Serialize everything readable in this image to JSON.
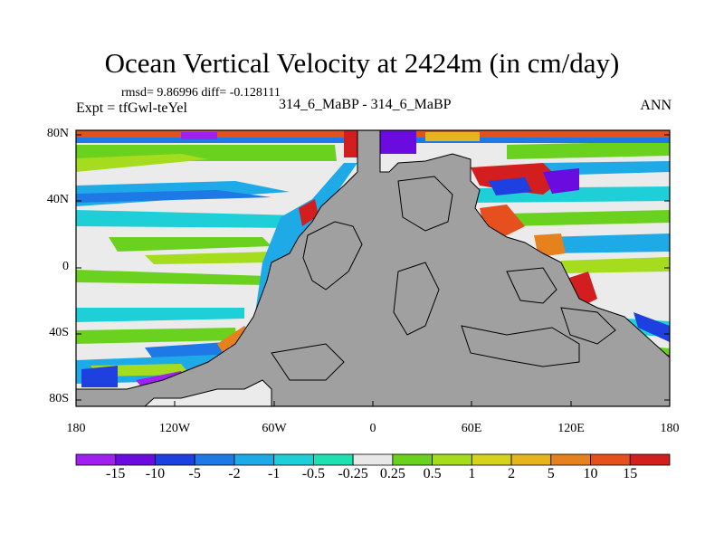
{
  "title": "Ocean Vertical Velocity at 2424m (in cm/day)",
  "stats": "rmsd= 9.86996 diff= -0.128111",
  "experiment": "Expt = tfGwl-teYel",
  "case": "314_6_MaBP - 314_6_MaBP",
  "season": "ANN",
  "y_axis": [
    "80N",
    "40N",
    "0",
    "40S",
    "80S"
  ],
  "x_axis": [
    "180",
    "120W",
    "60W",
    "0",
    "60E",
    "120E",
    "180"
  ],
  "colorbar": {
    "labels": [
      "-15",
      "-10",
      "-5",
      "-2",
      "-1",
      "-0.5",
      "-0.25",
      "0.25",
      "0.5",
      "1",
      "2",
      "5",
      "10",
      "15"
    ],
    "colors": [
      "#a020f0",
      "#6a0ce0",
      "#1e40e0",
      "#1e78e6",
      "#1eaae6",
      "#1ecfd8",
      "#1ee0b0",
      "#e8e8e8",
      "#6ad21e",
      "#a6dc1e",
      "#d6d21e",
      "#e6b41e",
      "#e6821e",
      "#e6501e",
      "#d21e1e"
    ]
  },
  "colors": {
    "land": "#a0a0a0",
    "ocean_neutral": "#ebebeb"
  }
}
